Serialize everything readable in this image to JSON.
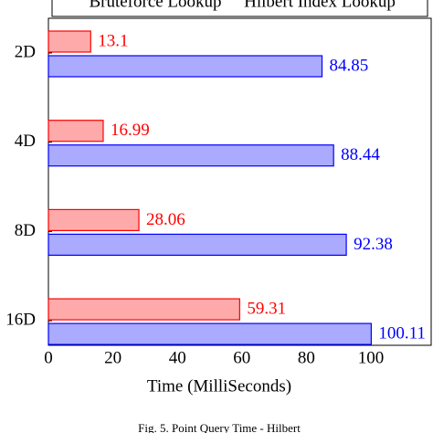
{
  "chart_data": {
    "type": "hbar",
    "legend": true,
    "categories": [
      "2D",
      "4D",
      "8D",
      "16D"
    ],
    "series": [
      {
        "name": "Bruteforce Lookup",
        "color": "#ff0000",
        "fill": "#ffaaaa",
        "values": [
          13.1,
          16.99,
          28.06,
          59.31
        ]
      },
      {
        "name": "Hilbert Index Lookup",
        "color": "#0000ff",
        "fill": "#aaaaff",
        "values": [
          84.85,
          88.44,
          92.38,
          100.11
        ]
      }
    ],
    "xlim": [
      0,
      118.7
    ],
    "xticks": [
      0,
      20,
      40,
      60,
      80,
      100
    ],
    "xlabel": "Time (MilliSeconds)",
    "caption": "Fig. 5.   Point Query Time - Hilbert"
  }
}
